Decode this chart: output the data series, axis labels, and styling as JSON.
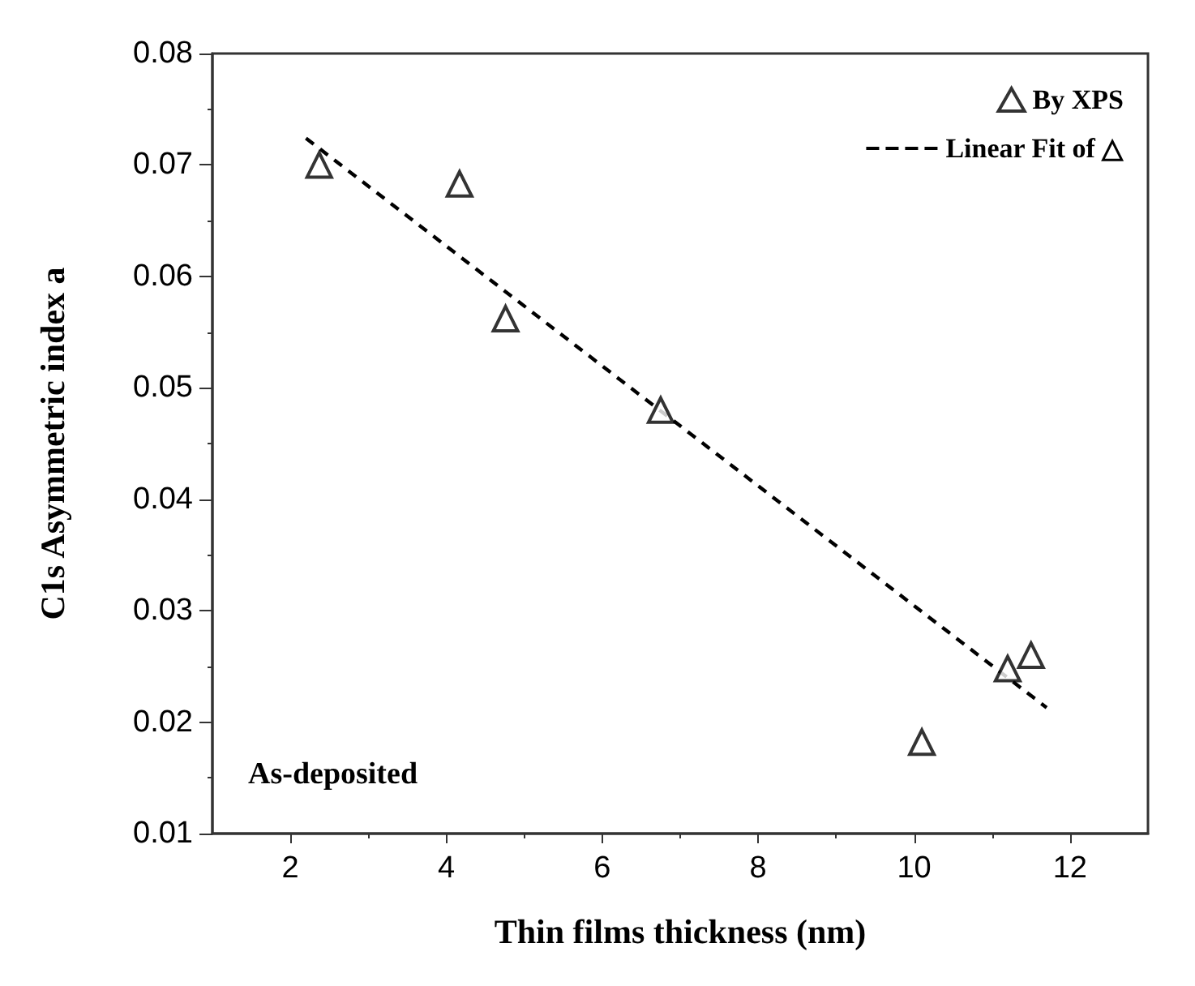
{
  "chart_data": {
    "type": "scatter",
    "xlabel": "Thin films thickness (nm)",
    "ylabel": "C1s Asymmetric index a",
    "xlim": [
      1,
      13
    ],
    "xticks": [
      2,
      4,
      6,
      8,
      10,
      12
    ],
    "ylim": [
      0.01,
      0.08
    ],
    "yticks": [
      0.01,
      0.02,
      0.03,
      0.04,
      0.05,
      0.06,
      0.07,
      0.08
    ],
    "grid": false,
    "legend": "top right",
    "marker": "triangle",
    "annotations": [
      "As-deposited"
    ],
    "series": [
      {
        "name": "By XPS",
        "color": "#000000",
        "x": [
          2.37,
          4.17,
          4.76,
          6.75,
          10.1,
          11.2,
          11.5
        ],
        "values": [
          0.07,
          0.0683,
          0.0562,
          0.048,
          0.0182,
          0.0248,
          0.026
        ]
      },
      {
        "name": "Linear Fit of △",
        "type": "line",
        "color": "#000000",
        "line_style": "dashed",
        "marker": "none",
        "x": [
          2.2,
          11.7
        ],
        "values": [
          0.0724,
          0.0213
        ]
      }
    ]
  }
}
